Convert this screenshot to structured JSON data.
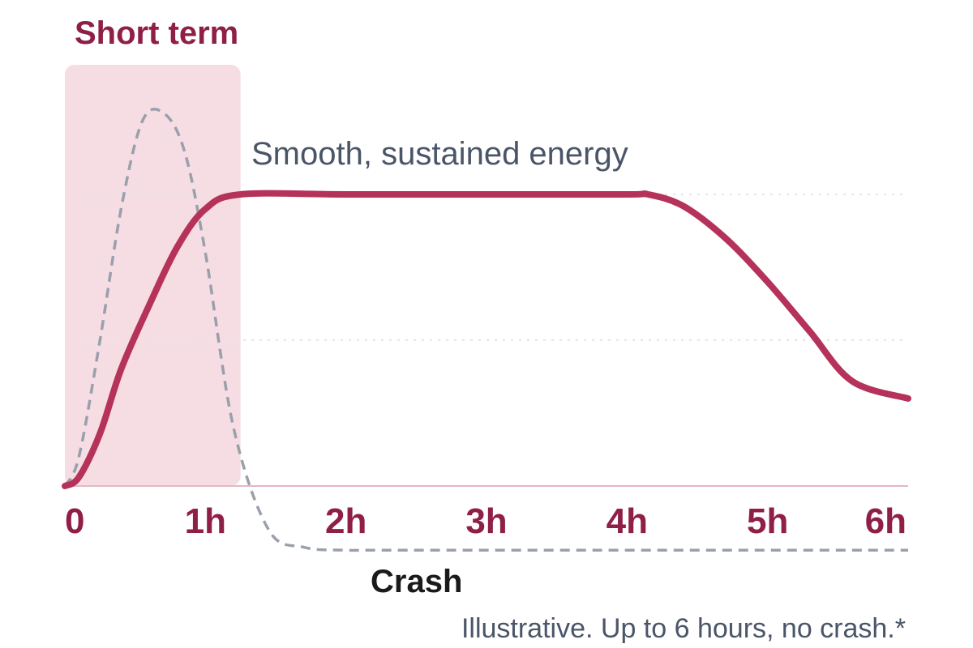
{
  "colors": {
    "brand": "#b5325a",
    "brand_dark": "#8f1f47",
    "highlight_fill": "#f6dde3",
    "dashed_line": "#9aa0ab",
    "label_gray": "#4a5568",
    "crash_text": "#1a1a1a",
    "grid": "#e6e6e6",
    "baseline": "#e5b8c4"
  },
  "chart_data": {
    "type": "line",
    "title": "",
    "highlight_label": "Short term",
    "highlight_range": [
      0,
      1.25
    ],
    "x_ticks": [
      {
        "value": 0,
        "label": "0"
      },
      {
        "value": 1,
        "label": "1h"
      },
      {
        "value": 2,
        "label": "2h"
      },
      {
        "value": 3,
        "label": "3h"
      },
      {
        "value": 4,
        "label": "4h"
      },
      {
        "value": 5,
        "label": "5h"
      },
      {
        "value": 6,
        "label": "6h"
      }
    ],
    "xlim": [
      0,
      6
    ],
    "ylim": [
      -0.22,
      1.27
    ],
    "grid_y": [
      0.5,
      1.0
    ],
    "series": [
      {
        "name": "Smooth, sustained energy",
        "style": "solid",
        "x": [
          0,
          0.1,
          0.25,
          0.4,
          0.6,
          0.8,
          1.0,
          1.25,
          2,
          3,
          4,
          4.15,
          4.4,
          4.7,
          5.0,
          5.3,
          5.6,
          6.0
        ],
        "y": [
          0,
          0.03,
          0.18,
          0.4,
          0.62,
          0.82,
          0.95,
          1.0,
          1.0,
          1.0,
          1.0,
          1.0,
          0.96,
          0.85,
          0.7,
          0.53,
          0.36,
          0.3
        ]
      },
      {
        "name": "Crash",
        "style": "dashed",
        "x": [
          0,
          0.1,
          0.25,
          0.4,
          0.55,
          0.7,
          0.85,
          1.0,
          1.2,
          1.45,
          1.7,
          2.0,
          2.5,
          6.0
        ],
        "y": [
          0,
          0.1,
          0.5,
          0.95,
          1.25,
          1.28,
          1.15,
          0.8,
          0.2,
          -0.15,
          -0.21,
          -0.22,
          -0.22,
          -0.22
        ]
      }
    ],
    "annotations": {
      "smooth_label": "Smooth, sustained energy",
      "crash_label": "Crash",
      "footnote": "Illustrative. Up to 6 hours, no crash.*"
    }
  }
}
